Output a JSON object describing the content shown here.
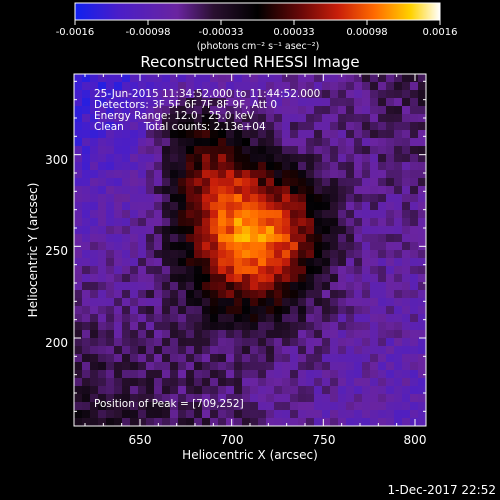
{
  "chart_data": {
    "type": "heatmap",
    "title": "Reconstructed RHESSI Image",
    "xlabel": "Heliocentric X (arcsec)",
    "ylabel": "Heliocentric Y (arcsec)",
    "xlim": [
      614,
      806
    ],
    "ylim": [
      152,
      344
    ],
    "x_ticks": [
      650,
      700,
      750,
      800
    ],
    "y_ticks": [
      200,
      250,
      300
    ],
    "colorbar": {
      "min": -0.0016,
      "max": 0.0016,
      "ticks": [
        "-0.0016",
        "-0.00098",
        "-0.00033",
        "0.00033",
        "0.00098",
        "0.0016"
      ],
      "unit_label": "(photons cm⁻² s⁻¹ asec⁻²)",
      "colormap": "rhessi-blue-purple-red-yellow-white"
    },
    "info_lines": [
      "25-Jun-2015 11:34:52.000 to 11:44:52.000",
      "Detectors: 3F 5F 6F 7F 8F 9F, Att 0",
      "Energy Range: 12.0 - 25.0 keV",
      "Clean      Total counts: 2.13e+04"
    ],
    "peak_label": "Position of Peak = [709,252]",
    "peak_position": [
      709,
      252
    ],
    "peak_value": 0.0016,
    "sources": [
      {
        "x": 709,
        "y": 252,
        "sx": 24,
        "sy": 28,
        "amp": 0.00165
      },
      {
        "x": 688,
        "y": 292,
        "sx": 18,
        "sy": 24,
        "amp": 0.00092
      },
      {
        "x": 735,
        "y": 262,
        "sx": 14,
        "sy": 20,
        "amp": 0.00048
      },
      {
        "x": 672,
        "y": 318,
        "sx": 12,
        "sy": 12,
        "amp": 0.0004
      }
    ],
    "background_levels": {
      "top_left": -0.0014,
      "top_right": -0.0004,
      "bottom_left": -0.0002,
      "bottom_right": -0.001
    }
  },
  "footer_date": "1-Dec-2017 22:52"
}
